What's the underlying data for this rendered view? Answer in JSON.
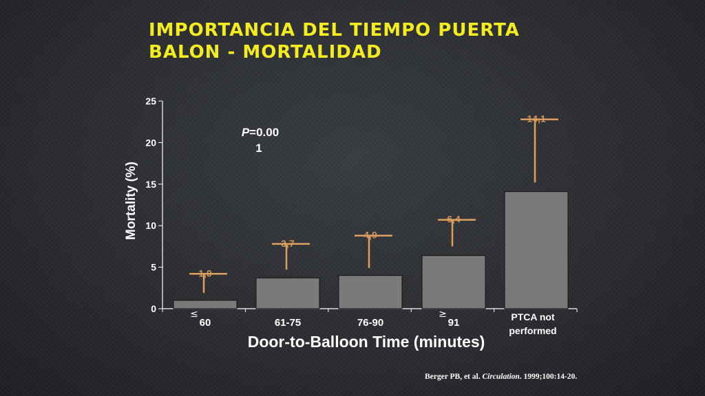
{
  "slide": {
    "title_line1": "IMPORTANCIA DEL TIEMPO PUERTA",
    "title_line2": "BALON - MORTALIDAD"
  },
  "citation": {
    "authors": "Berger PB, et al. ",
    "journal": "Circulation",
    "details": ". 1999;100:14-20."
  },
  "colors": {
    "title": "#f4ec1e",
    "bar": "#7a7a7a",
    "error_bar": "#e0a060",
    "text": "#ffffff"
  },
  "chart_data": {
    "type": "bar",
    "categories": [
      "60",
      "61-75",
      "76-90",
      "91",
      "PTCA not performed"
    ],
    "category_prefix_symbols": [
      "≤",
      "",
      "",
      "≥",
      ""
    ],
    "values": [
      1.0,
      3.7,
      4.0,
      6.4,
      14.1
    ],
    "value_labels": [
      "1,0",
      "3,7",
      "4,0",
      "6,4",
      "14,1"
    ],
    "error_lower": [
      1.9,
      4.7,
      4.9,
      7.5,
      15.2
    ],
    "error_upper": [
      4.2,
      7.8,
      8.8,
      10.7,
      22.8
    ],
    "xlabel": "Door-to-Balloon Time (minutes)",
    "ylabel": "Mortality (%)",
    "ylim": [
      0,
      25
    ],
    "yticks": [
      0,
      5,
      10,
      15,
      20,
      25
    ],
    "annotation": {
      "label": "P",
      "value": "=0.00",
      "value_wrap": "1"
    },
    "grid": false,
    "legend": "none"
  }
}
